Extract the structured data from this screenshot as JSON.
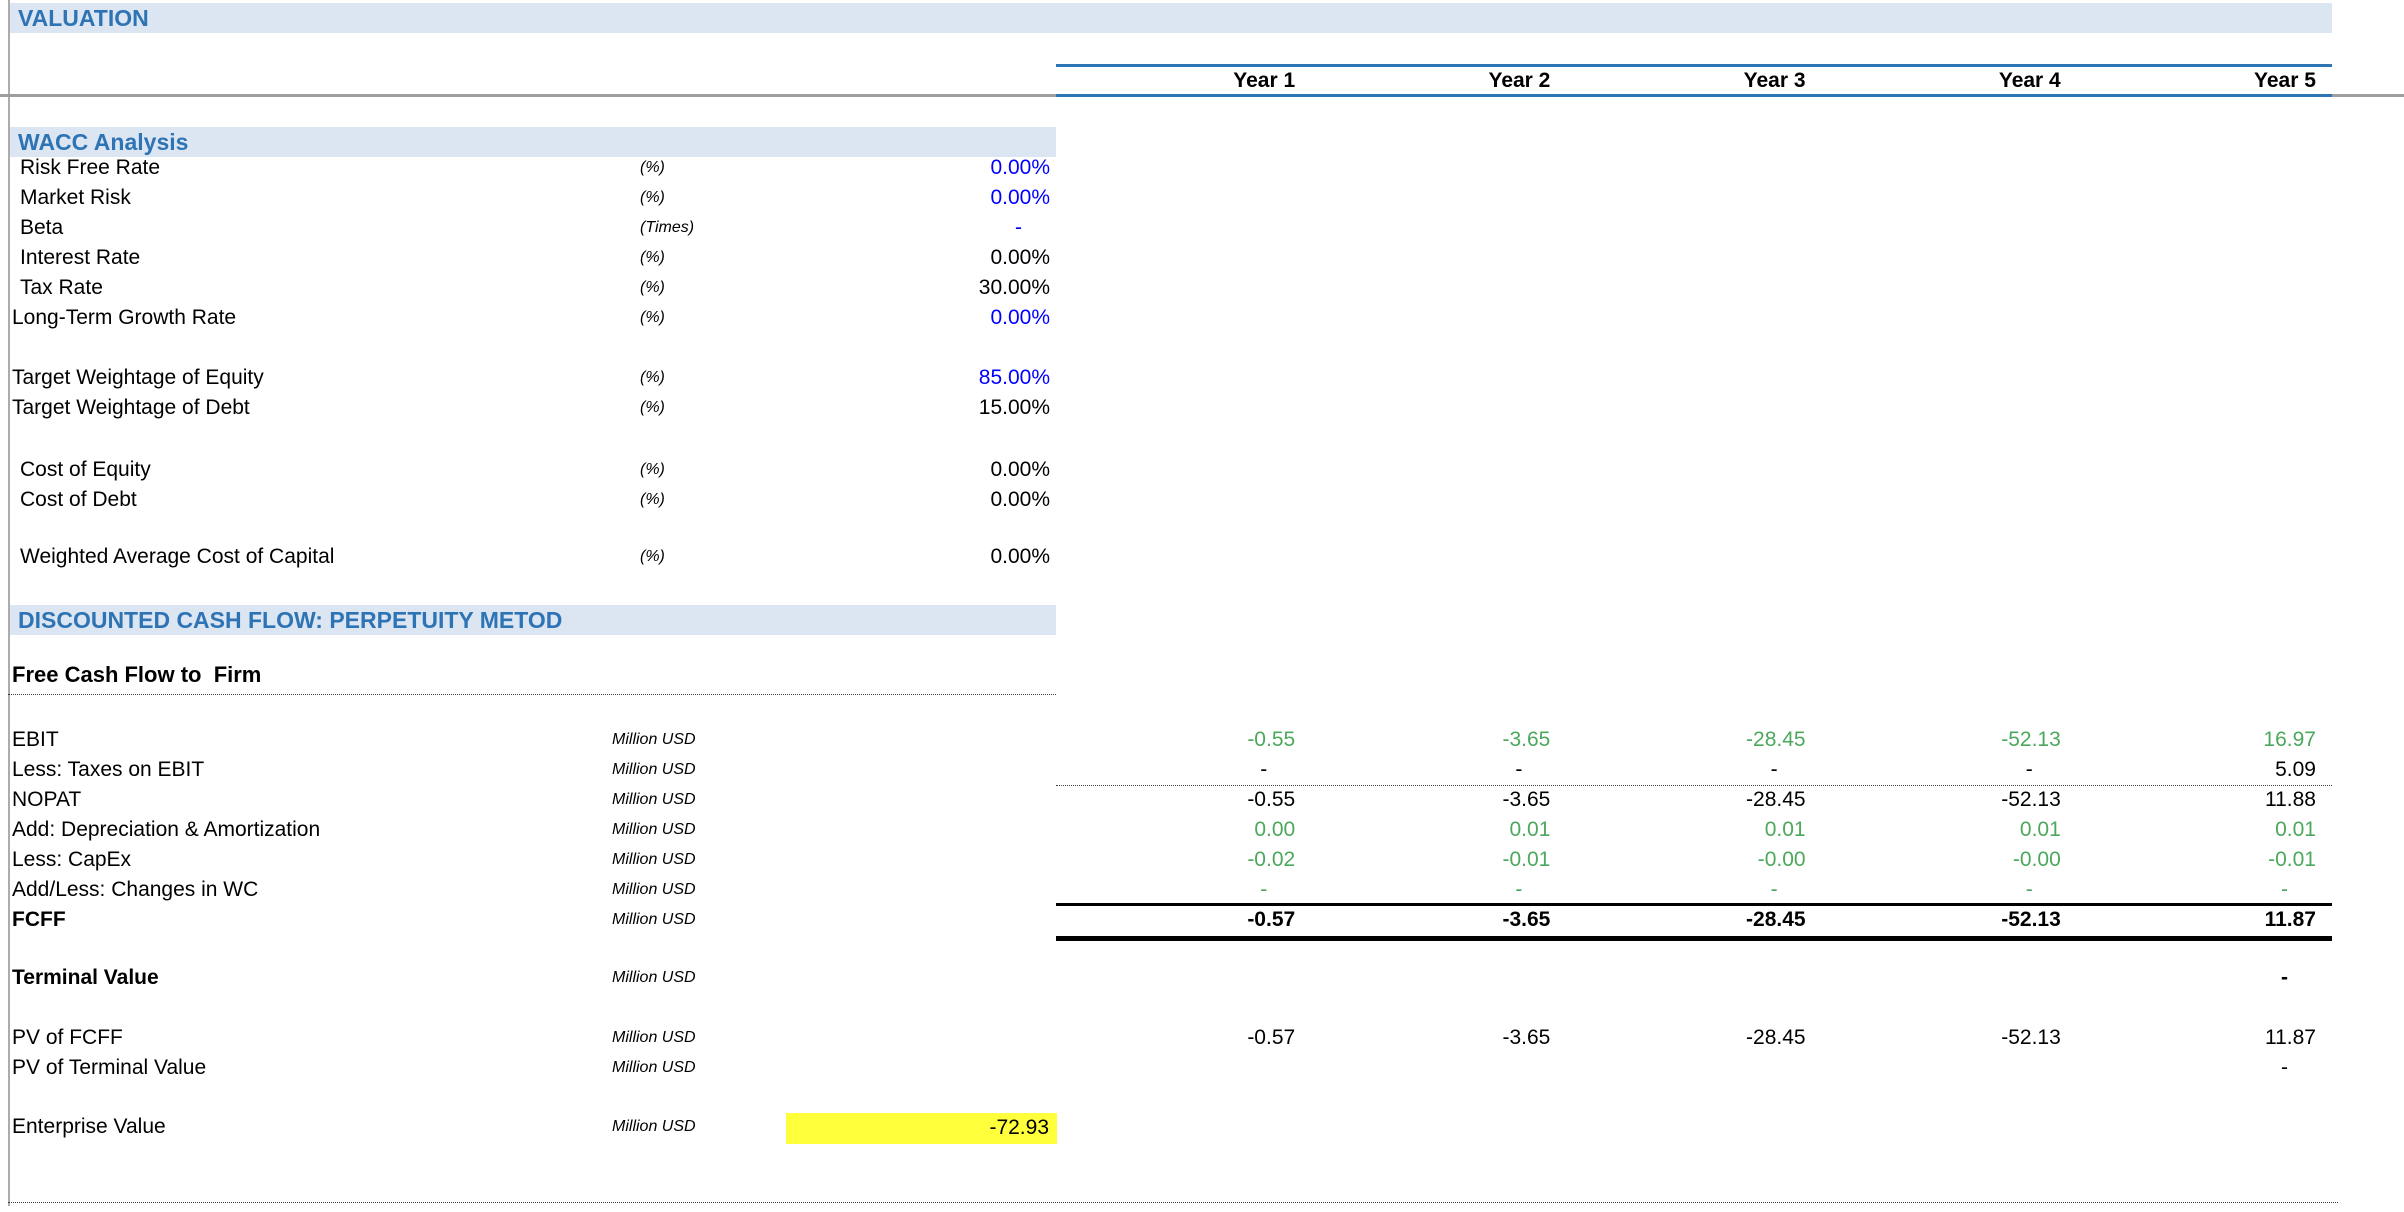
{
  "sheet": {
    "title": "VALUATION",
    "columns": [
      "Year 1",
      "Year 2",
      "Year 3",
      "Year 4",
      "Year 5"
    ],
    "wacc": {
      "header": "WACC Analysis",
      "rows": [
        {
          "label": "Risk Free Rate",
          "unit": "(%)",
          "value": "0.00%",
          "value_color": "blue"
        },
        {
          "label": "Market Risk",
          "unit": "(%)",
          "value": "0.00%",
          "value_color": "blue"
        },
        {
          "label": "Beta",
          "unit": "(Times)",
          "value": "-",
          "value_color": "blue"
        },
        {
          "label": "Interest Rate",
          "unit": "(%)",
          "value": "0.00%",
          "value_color": "black"
        },
        {
          "label": "Tax Rate",
          "unit": "(%)",
          "value": "30.00%",
          "value_color": "black"
        },
        {
          "label": "Long-Term Growth Rate",
          "unit": "(%)",
          "value": "0.00%",
          "value_color": "blue"
        },
        {
          "label": "Target Weightage of Equity",
          "unit": "(%)",
          "value": "85.00%",
          "value_color": "blue"
        },
        {
          "label": "Target Weightage of Debt",
          "unit": "(%)",
          "value": "15.00%",
          "value_color": "black"
        },
        {
          "label": "Cost of Equity",
          "unit": "(%)",
          "value": "0.00%",
          "value_color": "black"
        },
        {
          "label": "Cost of Debt",
          "unit": "(%)",
          "value": "0.00%",
          "value_color": "black"
        },
        {
          "label": "Weighted Average Cost of Capital",
          "unit": "(%)",
          "value": "0.00%",
          "value_color": "black"
        }
      ]
    },
    "dcf": {
      "header": "DISCOUNTED CASH FLOW: PERPETUITY METOD",
      "subheader": "Free Cash Flow to  Firm",
      "flow_rows": [
        {
          "label": "EBIT",
          "unit": "Million USD",
          "color": "green",
          "bold": false,
          "values": [
            "-0.55",
            "-3.65",
            "-28.45",
            "-52.13",
            "16.97"
          ]
        },
        {
          "label": "Less: Taxes on EBIT",
          "unit": "Million USD",
          "color": "black",
          "bold": false,
          "values": [
            "-",
            "-",
            "-",
            "-",
            "5.09"
          ]
        },
        {
          "label": "NOPAT",
          "unit": "Million USD",
          "color": "black",
          "bold": false,
          "values": [
            "-0.55",
            "-3.65",
            "-28.45",
            "-52.13",
            "11.88"
          ]
        },
        {
          "label": "Add: Depreciation & Amortization",
          "unit": "Million USD",
          "color": "green",
          "bold": false,
          "values": [
            "0.00",
            "0.01",
            "0.01",
            "0.01",
            "0.01"
          ]
        },
        {
          "label": "Less: CapEx",
          "unit": "Million USD",
          "color": "green",
          "bold": false,
          "values": [
            "-0.02",
            "-0.01",
            "-0.00",
            "-0.00",
            "-0.01"
          ]
        },
        {
          "label": "Add/Less: Changes in WC",
          "unit": "Million USD",
          "color": "green",
          "bold": false,
          "values": [
            "-",
            "-",
            "-",
            "-",
            "-"
          ]
        },
        {
          "label": "FCFF",
          "unit": "Million USD",
          "color": "black",
          "bold": true,
          "values": [
            "-0.57",
            "-3.65",
            "-28.45",
            "-52.13",
            "11.87"
          ]
        }
      ],
      "terminal_row": {
        "label": "Terminal Value",
        "unit": "Million USD",
        "values": [
          "",
          "",
          "",
          "",
          "-"
        ]
      },
      "pv_rows": [
        {
          "label": "PV of FCFF",
          "unit": "Million USD",
          "values": [
            "-0.57",
            "-3.65",
            "-28.45",
            "-52.13",
            "11.87"
          ]
        },
        {
          "label": "PV of Terminal Value",
          "unit": "Million USD",
          "values": [
            "",
            "",
            "",
            "",
            "-"
          ]
        }
      ],
      "enterprise_row": {
        "label": "Enterprise Value",
        "unit": "Million USD",
        "value": "-72.93"
      }
    },
    "colors": {
      "header_blue": "#2E74B5",
      "band_border_blue": "#2E75B6",
      "band_bg": "#DCE6F2",
      "input_blue": "#0000FF",
      "result_green": "#4CA85C",
      "highlight_yellow": "#FFFF3B",
      "gridline_gray": "#9E9E9E"
    }
  }
}
